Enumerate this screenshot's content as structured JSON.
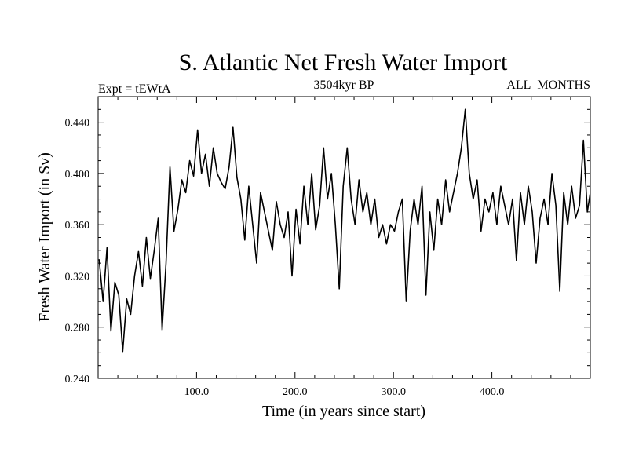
{
  "chart_data": {
    "type": "line",
    "title": "S. Atlantic Net Fresh Water Import",
    "subtitle_left": "Expt = tEWtA",
    "subtitle_center": "3504kyr BP",
    "subtitle_right": "ALL_MONTHS",
    "xlabel": "Time (in years since start)",
    "ylabel": "Fresh Water Import (in Sv)",
    "xlim": [
      0,
      500
    ],
    "ylim": [
      0.24,
      0.46
    ],
    "x_ticks": [
      100,
      200,
      300,
      400
    ],
    "x_tick_labels": [
      "100.0",
      "200.0",
      "300.0",
      "400.0"
    ],
    "y_ticks": [
      0.24,
      0.28,
      0.32,
      0.36,
      0.4,
      0.44
    ],
    "y_tick_labels": [
      "0.240",
      "0.280",
      "0.320",
      "0.360",
      "0.400",
      "0.440"
    ],
    "series": [
      {
        "name": "Fresh Water Import",
        "color": "#000000",
        "x": [
          1,
          5,
          9,
          13,
          17,
          21,
          25,
          29,
          33,
          37,
          41,
          45,
          49,
          53,
          57,
          61,
          65,
          69,
          73,
          77,
          81,
          85,
          89,
          93,
          97,
          101,
          105,
          109,
          113,
          117,
          121,
          125,
          129,
          133,
          137,
          141,
          145,
          149,
          153,
          157,
          161,
          165,
          169,
          173,
          177,
          181,
          185,
          189,
          193,
          197,
          201,
          205,
          209,
          213,
          217,
          221,
          225,
          229,
          233,
          237,
          241,
          245,
          249,
          253,
          257,
          261,
          265,
          269,
          273,
          277,
          281,
          285,
          289,
          293,
          297,
          301,
          305,
          309,
          313,
          317,
          321,
          325,
          329,
          333,
          337,
          341,
          345,
          349,
          353,
          357,
          361,
          365,
          369,
          373,
          377,
          381,
          385,
          389,
          393,
          397,
          401,
          405,
          409,
          413,
          417,
          421,
          425,
          429,
          433,
          437,
          441,
          445,
          449,
          453,
          457,
          461,
          465,
          469,
          473,
          477,
          481,
          485,
          489,
          493,
          497,
          500
        ],
        "values": [
          0.333,
          0.3,
          0.342,
          0.277,
          0.315,
          0.305,
          0.261,
          0.302,
          0.29,
          0.32,
          0.339,
          0.312,
          0.35,
          0.318,
          0.34,
          0.365,
          0.278,
          0.33,
          0.405,
          0.355,
          0.372,
          0.395,
          0.385,
          0.41,
          0.398,
          0.434,
          0.4,
          0.415,
          0.39,
          0.42,
          0.4,
          0.393,
          0.388,
          0.405,
          0.436,
          0.397,
          0.38,
          0.348,
          0.39,
          0.36,
          0.33,
          0.385,
          0.37,
          0.355,
          0.34,
          0.378,
          0.36,
          0.35,
          0.37,
          0.32,
          0.372,
          0.345,
          0.39,
          0.36,
          0.4,
          0.356,
          0.375,
          0.42,
          0.38,
          0.4,
          0.36,
          0.31,
          0.39,
          0.42,
          0.38,
          0.36,
          0.395,
          0.37,
          0.385,
          0.36,
          0.38,
          0.35,
          0.36,
          0.345,
          0.36,
          0.355,
          0.37,
          0.38,
          0.3,
          0.355,
          0.38,
          0.36,
          0.39,
          0.305,
          0.37,
          0.34,
          0.38,
          0.36,
          0.395,
          0.37,
          0.385,
          0.4,
          0.42,
          0.45,
          0.4,
          0.38,
          0.395,
          0.355,
          0.38,
          0.37,
          0.385,
          0.36,
          0.39,
          0.375,
          0.36,
          0.38,
          0.332,
          0.385,
          0.36,
          0.39,
          0.37,
          0.33,
          0.365,
          0.38,
          0.36,
          0.4,
          0.375,
          0.308,
          0.385,
          0.36,
          0.39,
          0.365,
          0.375,
          0.426,
          0.37,
          0.385
        ]
      }
    ]
  }
}
